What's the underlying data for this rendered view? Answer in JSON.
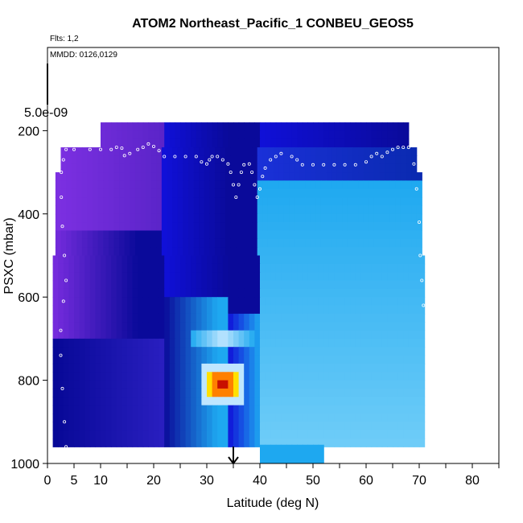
{
  "chart_data": {
    "type": "heatmap",
    "title": "ATOM2 Northeast_Pacific_1 CONBEU_GEOS5",
    "notes": [
      "Flts: 1,2",
      "MMDD: 0126,0129"
    ],
    "xlabel": "Latitude (deg N)",
    "ylabel": "PSXC (mbar)",
    "xlim": [
      0,
      85
    ],
    "ylim": [
      1000,
      0
    ],
    "x_ticks": [
      0,
      5,
      10,
      20,
      30,
      40,
      50,
      60,
      70,
      80
    ],
    "x_minor_ticks": [
      15,
      25,
      35,
      45,
      55,
      65,
      75,
      85
    ],
    "y_ticks": [
      200,
      400,
      600,
      800,
      1000
    ],
    "colorbar_label": "5.0e-09",
    "colors": {
      "deep_purple": "#7a2fe0",
      "navy": "#0a0a9a",
      "blue": "#1010d8",
      "sky": "#1ea8f0",
      "light": "#bfe6ff",
      "peak": "#c81000",
      "orange": "#ff8000",
      "yellow": "#ffe000"
    },
    "grid": false,
    "marker": {
      "lat": 35,
      "label": "arrow"
    },
    "flight_track": [
      [
        3.5,
        960
      ],
      [
        3.2,
        900
      ],
      [
        2.8,
        820
      ],
      [
        2.5,
        740
      ],
      [
        2.5,
        680
      ],
      [
        3,
        610
      ],
      [
        3.5,
        560
      ],
      [
        3.2,
        500
      ],
      [
        2.8,
        430
      ],
      [
        2.6,
        360
      ],
      [
        2.6,
        300
      ],
      [
        3,
        270
      ],
      [
        3.5,
        245
      ],
      [
        5,
        245
      ],
      [
        8,
        245
      ],
      [
        10,
        245
      ],
      [
        12,
        245
      ],
      [
        13,
        240
      ],
      [
        14,
        242
      ],
      [
        14.5,
        260
      ],
      [
        15.5,
        255
      ],
      [
        17,
        245
      ],
      [
        18,
        240
      ],
      [
        19,
        232
      ],
      [
        20,
        238
      ],
      [
        21,
        248
      ],
      [
        22,
        262
      ],
      [
        24,
        262
      ],
      [
        26,
        262
      ],
      [
        28,
        262
      ],
      [
        29,
        275
      ],
      [
        30,
        280
      ],
      [
        30.5,
        270
      ],
      [
        31,
        262
      ],
      [
        32,
        262
      ],
      [
        33,
        270
      ],
      [
        34,
        280
      ],
      [
        34.5,
        300
      ],
      [
        35,
        330
      ],
      [
        35.5,
        360
      ],
      [
        36,
        330
      ],
      [
        36.5,
        300
      ],
      [
        37,
        282
      ],
      [
        38,
        280
      ],
      [
        38.5,
        300
      ],
      [
        39,
        330
      ],
      [
        39.5,
        360
      ],
      [
        40,
        340
      ],
      [
        40.5,
        310
      ],
      [
        41,
        290
      ],
      [
        42,
        270
      ],
      [
        43,
        262
      ],
      [
        44,
        255
      ],
      [
        46,
        262
      ],
      [
        47,
        270
      ],
      [
        48,
        282
      ],
      [
        50,
        282
      ],
      [
        52,
        282
      ],
      [
        54,
        282
      ],
      [
        56,
        282
      ],
      [
        58,
        282
      ],
      [
        60,
        275
      ],
      [
        61,
        262
      ],
      [
        62,
        255
      ],
      [
        63,
        262
      ],
      [
        64,
        252
      ],
      [
        65,
        245
      ],
      [
        66,
        240
      ],
      [
        67,
        240
      ],
      [
        68,
        240
      ],
      [
        69,
        280
      ],
      [
        69.5,
        340
      ],
      [
        70,
        420
      ],
      [
        70.2,
        500
      ],
      [
        70.5,
        560
      ],
      [
        70.8,
        620
      ]
    ],
    "note": ""
  }
}
